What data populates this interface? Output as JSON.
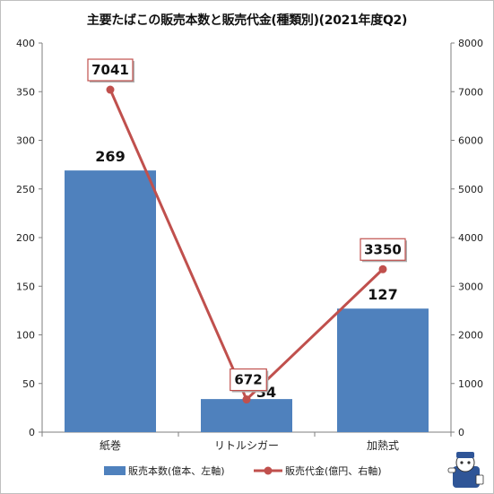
{
  "chart_data": {
    "type": "bar",
    "title": "主要たばこの販売本数と販売代金(種類別)(2021年度Q2)",
    "categories": [
      "紙巻",
      "リトルシガー",
      "加熱式"
    ],
    "series": [
      {
        "name": "販売本数(億本、左軸)",
        "kind": "bar",
        "axis": "left",
        "values": [
          269,
          34,
          127
        ],
        "labels": [
          "269",
          "34",
          "127"
        ],
        "color": "#4f81bd"
      },
      {
        "name": "販売代金(億円、右軸)",
        "kind": "line",
        "axis": "right",
        "values": [
          7041,
          672,
          3350
        ],
        "labels": [
          "7041",
          "672",
          "3350"
        ],
        "color": "#c0504d"
      }
    ],
    "ylim_left": [
      0,
      400
    ],
    "ylim_right": [
      0,
      8000
    ],
    "yticks_left": [
      "0",
      "50",
      "100",
      "150",
      "200",
      "250",
      "300",
      "350",
      "400"
    ],
    "yticks_right": [
      "0",
      "1000",
      "2000",
      "3000",
      "4000",
      "5000",
      "6000",
      "7000",
      "8000"
    ],
    "grid": false,
    "legend_position": "bottom"
  }
}
